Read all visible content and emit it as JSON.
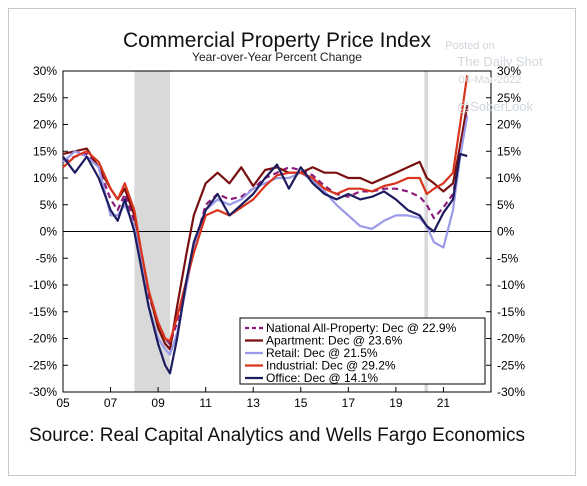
{
  "chart_data": {
    "type": "line",
    "title": "Commercial Property Price Index",
    "subtitle": "Year-over-Year Percent Change",
    "source": "Source: Real Capital Analytics and Wells Fargo Economics",
    "watermark": [
      "Posted on",
      "The Daily Shot",
      "04-Mar-2022",
      "@SoberLook"
    ],
    "xlim": [
      2005,
      2023
    ],
    "ylim": [
      -30,
      30
    ],
    "x_ticks": [
      2005,
      2007,
      2009,
      2011,
      2013,
      2015,
      2017,
      2019,
      2021
    ],
    "x_tick_labels": [
      "05",
      "07",
      "09",
      "11",
      "13",
      "15",
      "17",
      "19",
      "21"
    ],
    "y_ticks": [
      -30,
      -25,
      -20,
      -15,
      -10,
      -5,
      0,
      5,
      10,
      15,
      20,
      25,
      30
    ],
    "y_tick_labels": [
      "-30%",
      "-25%",
      "-20%",
      "-15%",
      "-10%",
      "-5%",
      "0%",
      "5%",
      "10%",
      "15%",
      "20%",
      "25%",
      "30%"
    ],
    "recession_bands": [
      [
        2008.0,
        2009.5
      ],
      [
        2020.2,
        2020.35
      ]
    ],
    "legend_position": "bottom-right",
    "series": [
      {
        "name": "National All-Property: Dec @ 22.9%",
        "color": "#8b1a7a",
        "dash": "6,4",
        "x": [
          2005.0,
          2005.5,
          2006.0,
          2006.5,
          2007.0,
          2007.3,
          2007.6,
          2008.0,
          2008.3,
          2008.6,
          2009.0,
          2009.3,
          2009.5,
          2009.8,
          2010.2,
          2010.5,
          2011.0,
          2011.5,
          2012.0,
          2012.5,
          2013.0,
          2013.5,
          2014.0,
          2014.5,
          2015.0,
          2015.5,
          2016.0,
          2016.5,
          2017.0,
          2017.5,
          2018.0,
          2018.5,
          2019.0,
          2019.5,
          2020.0,
          2020.3,
          2020.6,
          2021.0,
          2021.4,
          2021.7,
          2022.0
        ],
        "y": [
          13,
          14,
          14.5,
          12,
          6,
          4,
          7,
          2,
          -5,
          -12,
          -17,
          -20,
          -21,
          -17,
          -10,
          -3,
          5,
          7,
          6,
          6.5,
          8,
          10,
          11,
          12,
          11.5,
          10.5,
          8.5,
          7,
          6.5,
          7.5,
          7.5,
          8,
          8,
          7.5,
          6.5,
          5,
          2.5,
          4.5,
          7,
          14,
          22.9
        ]
      },
      {
        "name": "Apartment: Dec @ 23.6%",
        "color": "#7a0f0f",
        "dash": "",
        "x": [
          2005.0,
          2005.5,
          2006.0,
          2006.5,
          2007.0,
          2007.3,
          2007.6,
          2008.0,
          2008.3,
          2008.6,
          2009.0,
          2009.3,
          2009.5,
          2009.8,
          2010.2,
          2010.5,
          2011.0,
          2011.5,
          2012.0,
          2012.5,
          2013.0,
          2013.5,
          2014.0,
          2014.5,
          2015.0,
          2015.5,
          2016.0,
          2016.5,
          2017.0,
          2017.5,
          2018.0,
          2018.5,
          2019.0,
          2019.5,
          2020.0,
          2020.3,
          2020.6,
          2021.0,
          2021.4,
          2021.7,
          2022.0
        ],
        "y": [
          14.5,
          15,
          15.5,
          12,
          8,
          6,
          8,
          3,
          -4,
          -11,
          -18,
          -21,
          -22,
          -14,
          -4,
          3,
          9,
          11,
          9,
          12,
          8.5,
          11.5,
          12,
          11,
          11,
          12,
          11,
          11,
          10,
          10,
          9,
          10,
          11,
          12,
          13,
          10,
          9,
          7.5,
          9,
          16,
          23.6
        ]
      },
      {
        "name": "Retail: Dec @ 21.5%",
        "color": "#9a9ae8",
        "dash": "",
        "x": [
          2005.0,
          2005.5,
          2006.0,
          2006.5,
          2007.0,
          2007.3,
          2007.6,
          2008.0,
          2008.3,
          2008.6,
          2009.0,
          2009.3,
          2009.5,
          2009.8,
          2010.2,
          2010.5,
          2011.0,
          2011.5,
          2012.0,
          2012.5,
          2013.0,
          2013.5,
          2014.0,
          2014.5,
          2015.0,
          2015.5,
          2016.0,
          2016.5,
          2017.0,
          2017.5,
          2018.0,
          2018.5,
          2019.0,
          2019.5,
          2020.0,
          2020.3,
          2020.6,
          2021.0,
          2021.4,
          2021.7,
          2022.0
        ],
        "y": [
          13,
          15,
          14,
          12,
          3,
          3,
          5,
          1,
          -6,
          -14,
          -20,
          -22,
          -23,
          -19,
          -10,
          -3,
          4,
          6,
          5,
          6,
          8,
          9,
          10,
          10,
          11,
          9.5,
          7.5,
          5,
          3,
          1,
          0.5,
          2,
          3,
          3,
          2.5,
          1,
          -2,
          -3,
          4,
          14,
          21.5
        ]
      },
      {
        "name": "Industrial: Dec @ 29.2%",
        "color": "#d9341c",
        "dash": "",
        "x": [
          2005.0,
          2005.5,
          2006.0,
          2006.5,
          2007.0,
          2007.3,
          2007.6,
          2008.0,
          2008.3,
          2008.6,
          2009.0,
          2009.3,
          2009.5,
          2009.8,
          2010.2,
          2010.5,
          2011.0,
          2011.5,
          2012.0,
          2012.5,
          2013.0,
          2013.5,
          2014.0,
          2014.5,
          2015.0,
          2015.5,
          2016.0,
          2016.5,
          2017.0,
          2017.5,
          2018.0,
          2018.5,
          2019.0,
          2019.5,
          2020.0,
          2020.3,
          2020.6,
          2021.0,
          2021.4,
          2021.7,
          2022.0
        ],
        "y": [
          12,
          14,
          15,
          13,
          8,
          6,
          9,
          4,
          -4,
          -11,
          -17,
          -20,
          -20.5,
          -16,
          -9,
          -4,
          3,
          4,
          3,
          4.5,
          6,
          8.5,
          10.5,
          11,
          11,
          10,
          8,
          7,
          8,
          8,
          7.5,
          8.5,
          9,
          10,
          10,
          7,
          8,
          9,
          11,
          20,
          29.2
        ]
      },
      {
        "name": "Office: Dec @ 14.1%",
        "color": "#1c1c5e",
        "dash": "",
        "x": [
          2005.0,
          2005.5,
          2006.0,
          2006.5,
          2007.0,
          2007.3,
          2007.6,
          2008.0,
          2008.3,
          2008.6,
          2009.0,
          2009.3,
          2009.5,
          2009.8,
          2010.2,
          2010.5,
          2011.0,
          2011.5,
          2012.0,
          2012.5,
          2013.0,
          2013.5,
          2014.0,
          2014.5,
          2015.0,
          2015.5,
          2016.0,
          2016.5,
          2017.0,
          2017.5,
          2018.0,
          2018.5,
          2019.0,
          2019.5,
          2020.0,
          2020.3,
          2020.6,
          2021.0,
          2021.4,
          2021.7,
          2022.0
        ],
        "y": [
          14,
          11,
          14,
          10,
          4,
          2,
          6,
          0,
          -7,
          -14,
          -21,
          -25,
          -26.5,
          -20,
          -9,
          -2,
          4,
          7,
          3,
          5,
          7,
          10,
          12.5,
          8,
          12,
          9,
          7,
          6,
          7,
          6,
          6.5,
          7.5,
          6,
          4,
          3,
          1,
          0,
          3.5,
          6,
          14.5,
          14.1
        ]
      }
    ]
  }
}
